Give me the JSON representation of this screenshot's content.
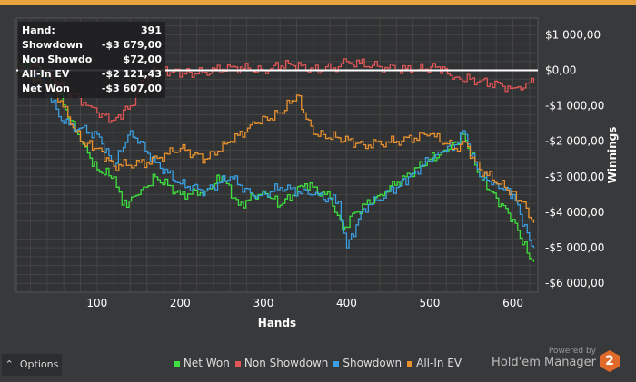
{
  "chart_data": {
    "type": "line",
    "xlabel": "Hands",
    "ylabel": "Winnings",
    "xlim": [
      3,
      630
    ],
    "ylim": [
      -6250,
      1470
    ],
    "xticks": [
      100,
      200,
      300,
      400,
      500,
      600
    ],
    "yticks": [
      1000,
      0,
      -1000,
      -2000,
      -3000,
      -4000,
      -5000,
      -6000
    ],
    "ytick_labels": [
      "$1 000,00",
      "$0,00",
      "-$1 000,00",
      "-$2 000,00",
      "-$3 000,00",
      "-$4 000,00",
      "-$5 000,00",
      "-$6 000,00"
    ],
    "grid": true,
    "legend": "bottom",
    "series": [
      {
        "name": "Net Won",
        "color": "#3ee03e",
        "x": [
          5,
          20,
          50,
          80,
          100,
          120,
          130,
          150,
          170,
          200,
          230,
          250,
          270,
          300,
          320,
          350,
          380,
          395,
          410,
          440,
          470,
          500,
          520,
          540,
          560,
          580,
          600,
          620,
          625
        ],
        "y": [
          0,
          300,
          -500,
          -2000,
          -2800,
          -3000,
          -3800,
          -3500,
          -3000,
          -3500,
          -3400,
          -3000,
          -3800,
          -3400,
          -3800,
          -3200,
          -3600,
          -4500,
          -4000,
          -3500,
          -3000,
          -2500,
          -2300,
          -1800,
          -3000,
          -3600,
          -4200,
          -5300,
          -5400
        ]
      },
      {
        "name": "Non Showdown",
        "color": "#e05555",
        "x": [
          5,
          30,
          60,
          90,
          100,
          120,
          140,
          150,
          170,
          220,
          260,
          300,
          330,
          360,
          390,
          400,
          440,
          480,
          510,
          530,
          560,
          600,
          625
        ],
        "y": [
          0,
          100,
          -500,
          -1000,
          -1200,
          -1400,
          -1000,
          -500,
          0,
          -100,
          100,
          0,
          200,
          0,
          100,
          250,
          100,
          0,
          100,
          -200,
          -300,
          -500,
          -350
        ]
      },
      {
        "name": "Showdown",
        "color": "#3a9ee0",
        "x": [
          5,
          30,
          60,
          100,
          120,
          140,
          170,
          200,
          230,
          260,
          290,
          320,
          360,
          390,
          400,
          420,
          460,
          480,
          510,
          530,
          540,
          560,
          580,
          600,
          620,
          625
        ],
        "y": [
          0,
          -200,
          -1500,
          -1800,
          -2700,
          -1700,
          -2600,
          -3200,
          -3400,
          -3000,
          -3600,
          -3300,
          -3500,
          -3700,
          -5000,
          -3900,
          -3300,
          -2900,
          -2300,
          -2100,
          -1700,
          -3000,
          -3200,
          -3500,
          -4800,
          -5000
        ]
      },
      {
        "name": "All-In EV",
        "color": "#e8912e",
        "x": [
          5,
          50,
          80,
          100,
          120,
          160,
          200,
          230,
          260,
          290,
          320,
          340,
          360,
          390,
          420,
          460,
          500,
          530,
          540,
          560,
          590,
          610,
          625
        ],
        "y": [
          0,
          -600,
          -2000,
          -2200,
          -2700,
          -2600,
          -2200,
          -2500,
          -2000,
          -1500,
          -1200,
          -700,
          -1800,
          -1900,
          -2100,
          -2000,
          -1800,
          -2200,
          -2000,
          -2800,
          -3300,
          -3700,
          -4300
        ]
      }
    ]
  },
  "tooltip": {
    "rows": [
      {
        "label": "Hand:",
        "value": "391"
      },
      {
        "label": "Showdown",
        "value": "-$3 679,00"
      },
      {
        "label": "Non Showdown",
        "value": "$72,00"
      },
      {
        "label": "All-In EV",
        "value": "-$2 121,43"
      },
      {
        "label": "Net Won",
        "value": "-$3 607,00"
      }
    ]
  },
  "options_label": "Options",
  "brand": {
    "powered": "Powered by",
    "name": "Hold'em Manager",
    "logo": "2"
  }
}
